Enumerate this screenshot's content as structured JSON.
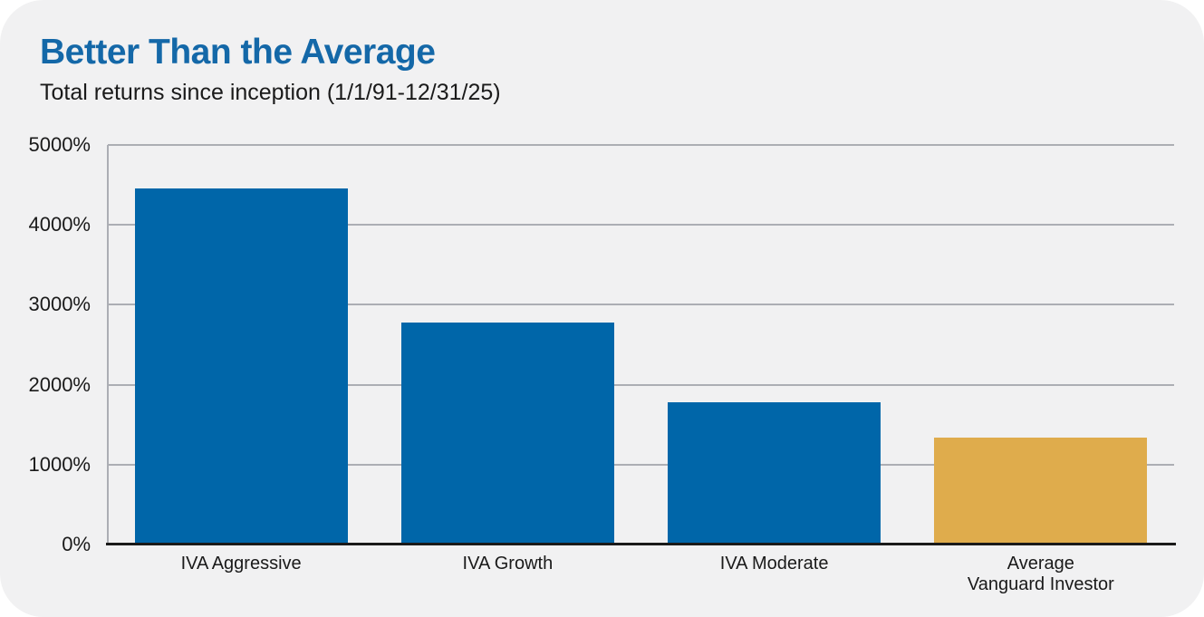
{
  "card": {
    "title": "Better Than the Average",
    "subtitle": "Total returns since inception (1/1/91-12/31/25)"
  },
  "chart_data": {
    "type": "bar",
    "title": "Better Than the Average",
    "subtitle": "Total returns since inception (1/1/91-12/31/25)",
    "categories": [
      "IVA Aggressive",
      "IVA Growth",
      "IVA Moderate",
      "Average\nVanguard Investor"
    ],
    "values": [
      4455,
      2780,
      1780,
      1335
    ],
    "value_unit": "%",
    "bar_colors": [
      "#0066A9",
      "#0066A9",
      "#0066A9",
      "#DFAC4C"
    ],
    "ylabel": "",
    "xlabel": "",
    "ylim": [
      0,
      5000
    ],
    "ytick_interval": 1000,
    "ytick_labels": [
      "0%",
      "1000%",
      "2000%",
      "3000%",
      "4000%",
      "5000%"
    ],
    "grid": "horizontal-major-only",
    "legend": "none"
  },
  "colors": {
    "card_bg": "#F1F1F2",
    "title_blue": "#1468A8",
    "text": "#1A1A1A",
    "bar_blue": "#0066A9",
    "bar_gold": "#DFAC4C",
    "gridline": "#ACAEB4",
    "axis_line": "#1A1A1A"
  }
}
